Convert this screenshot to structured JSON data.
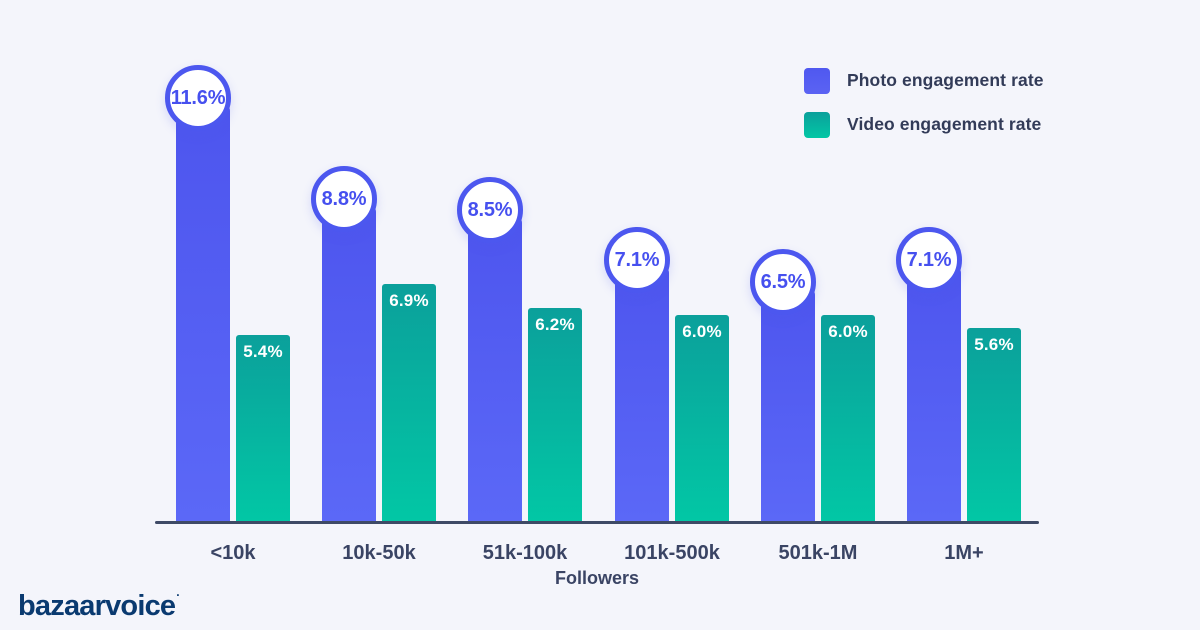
{
  "background_color": "#f4f5fb",
  "logo": {
    "text": "bazaarvoice",
    "mark": "·"
  },
  "legend": {
    "items": [
      {
        "label": "Photo engagement rate",
        "color_top": "#4f58f0",
        "color_bottom": "#5b63f3"
      },
      {
        "label": "Video engagement rate",
        "color_top": "#0ba09b",
        "color_bottom": "#02c7a5"
      }
    ]
  },
  "chart_data": {
    "type": "bar",
    "categories": [
      "<10k",
      "10k-50k",
      "51k-100k",
      "101k-500k",
      "501k-1M",
      "1M+"
    ],
    "series": [
      {
        "name": "Photo engagement rate",
        "values": [
          11.6,
          8.8,
          8.5,
          7.1,
          6.5,
          7.1
        ],
        "display_labels": [
          "11.6%",
          "8.8%",
          "8.5%",
          "7.1%",
          "6.5%",
          "7.1%"
        ],
        "color_top": "#4d55ee",
        "color_bottom": "#5b68f7",
        "label_style": "circle-bubble-above-bar"
      },
      {
        "name": "Video engagement rate",
        "values": [
          5.4,
          6.9,
          6.2,
          6.0,
          6.0,
          5.6
        ],
        "display_labels": [
          "5.4%",
          "6.9%",
          "6.2%",
          "6.0%",
          "6.0%",
          "5.6%"
        ],
        "color_top": "#0ba09b",
        "color_bottom": "#02c7a5",
        "label_style": "white-text-inside-bar-top"
      }
    ],
    "title": "",
    "xlabel": "Followers",
    "ylabel": "",
    "value_suffix": "%",
    "grid": false,
    "y_axis_shown": false,
    "legend_position": "top-right",
    "axis_color": "#3e4a66",
    "tick_text_color": "#3a4464"
  }
}
